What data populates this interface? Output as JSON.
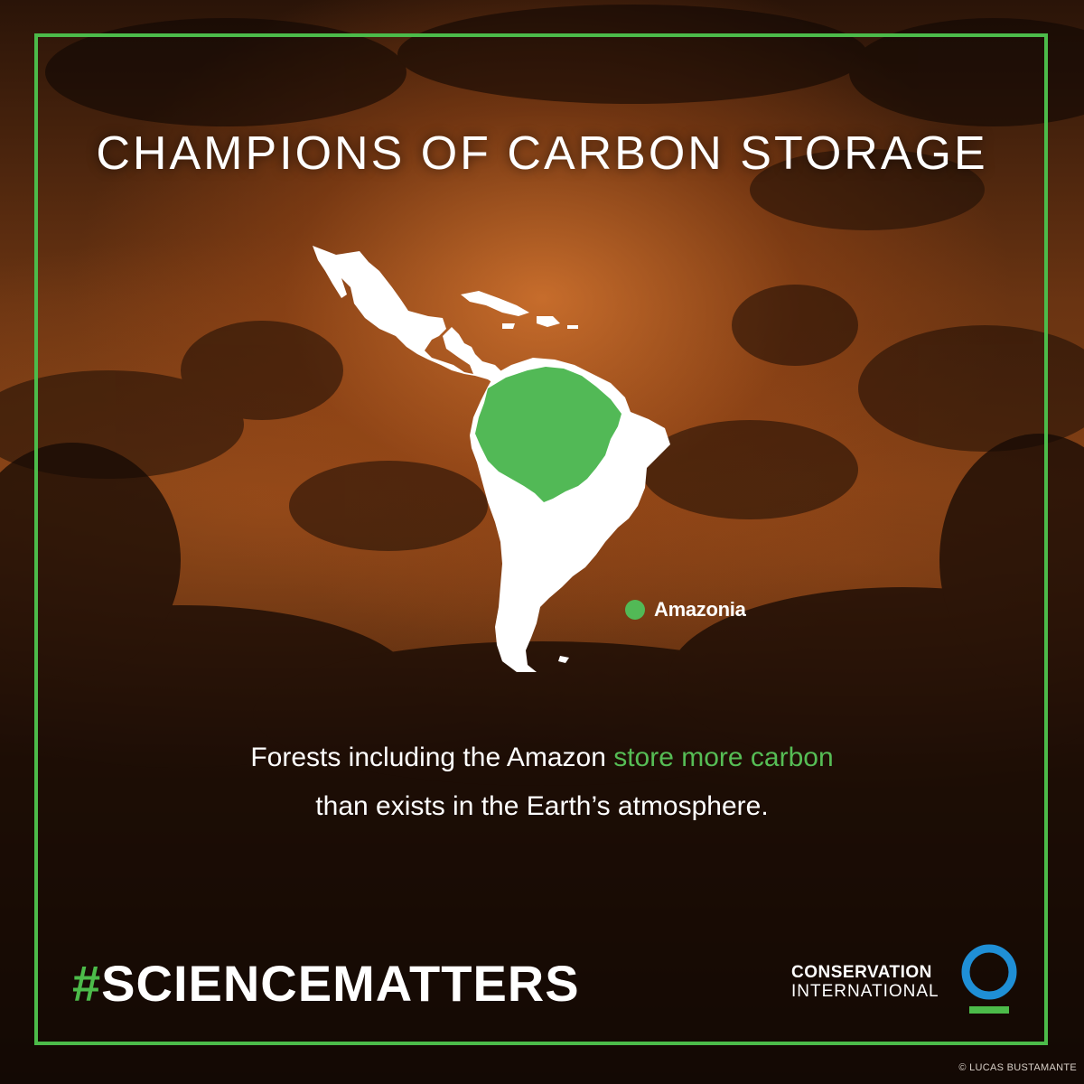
{
  "title": "CHAMPIONS OF CARBON STORAGE",
  "legend": {
    "label": "Amazonia",
    "color": "#52b956"
  },
  "body_text": {
    "before": "Forests including the Amazon ",
    "highlight": "store more carbon",
    "after": "than exists in the Earth’s atmosphere."
  },
  "hashtag": {
    "symbol": "#",
    "text": "SCIENCEMATTERS"
  },
  "organization": {
    "line1": "CONSERVATION",
    "line2": "INTERNATIONAL"
  },
  "credit": "© LUCAS BUSTAMANTE",
  "colors": {
    "accent_green": "#4cbb4a",
    "logo_blue": "#1f8fd6",
    "map_fill": "#ffffff"
  },
  "icons": [
    "conservation-international-logo-icon",
    "amazonia-map"
  ]
}
